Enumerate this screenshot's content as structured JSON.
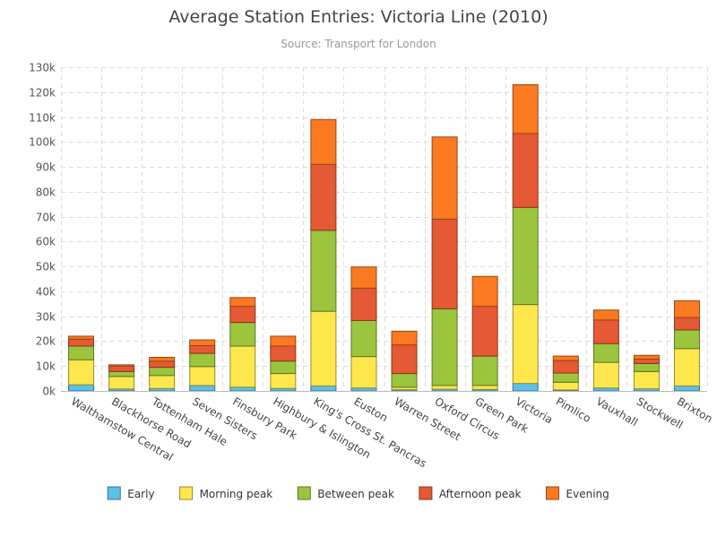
{
  "title": "Average Station Entries: Victoria Line (2010)",
  "subtitle": "Source: Transport for London",
  "chart_data": {
    "type": "bar",
    "stacked": true,
    "title": "Average Station Entries: Victoria Line (2010)",
    "subtitle": "Source: Transport for London",
    "xlabel": "",
    "ylabel": "",
    "ylim": [
      0,
      130000
    ],
    "y_ticks": [
      0,
      10000,
      20000,
      30000,
      40000,
      50000,
      60000,
      70000,
      80000,
      90000,
      100000,
      110000,
      120000,
      130000
    ],
    "y_tick_labels": [
      "0k",
      "10k",
      "20k",
      "30k",
      "40k",
      "50k",
      "60k",
      "70k",
      "80k",
      "90k",
      "100k",
      "110k",
      "120k",
      "130k"
    ],
    "grid": true,
    "legend_position": "bottom",
    "categories": [
      "Walthamstow Central",
      "Blackhorse Road",
      "Tottenham Hale",
      "Seven Sisters",
      "Finsbury Park",
      "Highbury & Islington",
      "King's Cross St. Pancras",
      "Euston",
      "Warren Street",
      "Oxford Circus",
      "Green Park",
      "Victoria",
      "Pimlico",
      "Vauxhall",
      "Stockwell",
      "Brixton"
    ],
    "series": [
      {
        "name": "Early",
        "color": "#5bc0eb",
        "values": [
          2500,
          800,
          1000,
          2200,
          1500,
          1000,
          2000,
          1200,
          500,
          700,
          600,
          3000,
          400,
          1200,
          900,
          2000
        ]
      },
      {
        "name": "Morning peak",
        "color": "#fde74c",
        "values": [
          10000,
          5000,
          5200,
          7600,
          16500,
          6000,
          30000,
          12600,
          1000,
          1500,
          1600,
          31700,
          3100,
          10300,
          6900,
          15000
        ]
      },
      {
        "name": "Between peak",
        "color": "#9bc53d",
        "values": [
          5500,
          2000,
          3300,
          5300,
          9500,
          5000,
          32500,
          14500,
          5500,
          30800,
          11800,
          39000,
          3700,
          7500,
          3200,
          7500
        ]
      },
      {
        "name": "Afternoon peak",
        "color": "#e55934",
        "values": [
          2800,
          2200,
          2500,
          3100,
          6500,
          6000,
          26500,
          13000,
          11500,
          36000,
          20000,
          29700,
          5000,
          9500,
          1800,
          5000
        ]
      },
      {
        "name": "Evening",
        "color": "#fa7921",
        "values": [
          1200,
          500,
          1500,
          2300,
          3500,
          4000,
          18000,
          8500,
          5500,
          33000,
          12000,
          19600,
          1800,
          4000,
          1500,
          6700
        ]
      }
    ]
  }
}
